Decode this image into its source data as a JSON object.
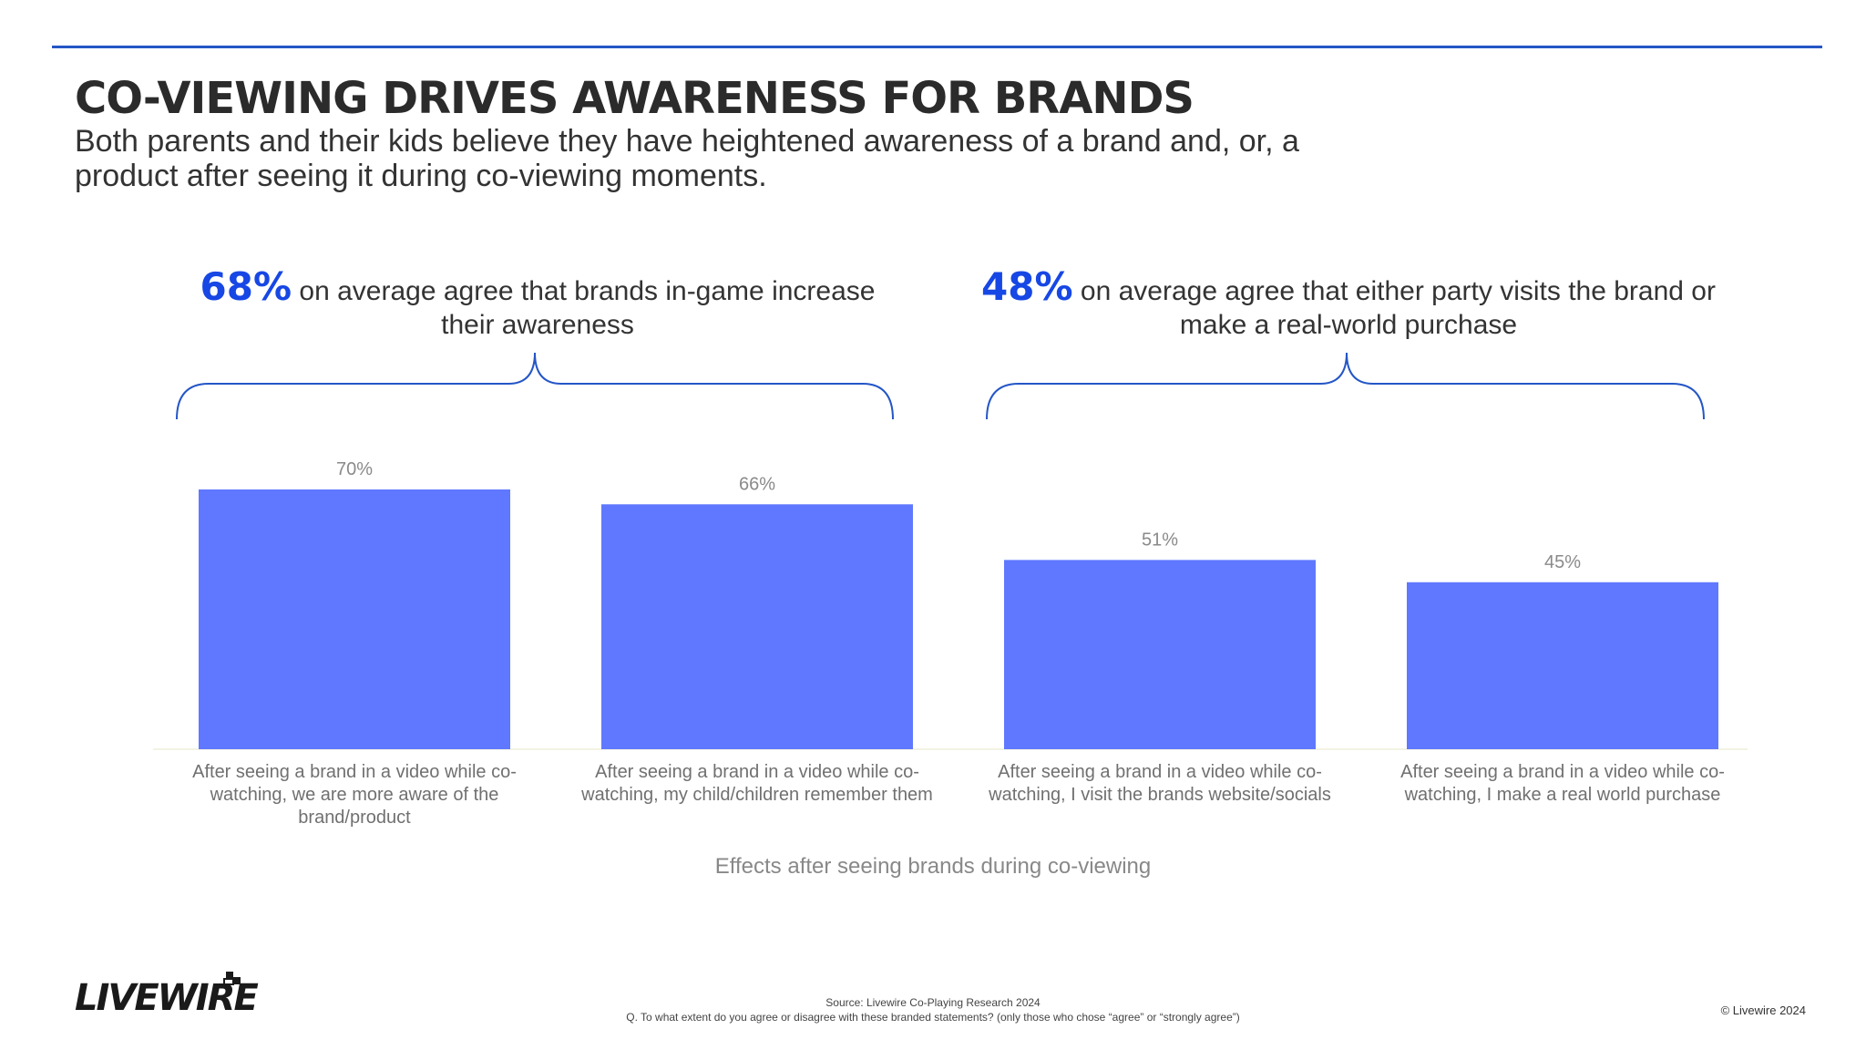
{
  "header": {
    "title": "CO-VIEWING DRIVES AWARENESS FOR BRANDS",
    "subtitle": "Both parents and their kids believe they have heightened awareness of a brand and, or, a product after seeing it during co-viewing moments."
  },
  "callouts": [
    {
      "pct": "68%",
      "text": "on average agree that brands in-game increase their awareness"
    },
    {
      "pct": "48%",
      "text": "on average agree that either party visits the brand or make a real-world purchase"
    }
  ],
  "chart_data": {
    "type": "bar",
    "categories": [
      "After seeing a brand in a video while co-watching, we are more aware of the brand/product",
      "After seeing a brand in a video while co-watching, my child/children remember them",
      "After seeing a brand in a video while co-watching, I visit the brands website/socials",
      "After seeing a brand in a video while co-watching, I make a real world purchase"
    ],
    "values": [
      70,
      66,
      51,
      45
    ],
    "data_labels": [
      "70%",
      "66%",
      "51%",
      "45%"
    ],
    "xlabel": "Effects after seeing brands during co-viewing",
    "ylabel": "",
    "ylim": [
      0,
      80
    ],
    "grid": false,
    "bar_color": "#6078ff"
  },
  "footer": {
    "source": "Source: Livewire Co-Playing Research 2024",
    "question": "Q. To what extent do you agree or disagree with these branded statements? (only those who chose “agree” or “strongly agree”)",
    "logo": "LIVEWIRE",
    "copyright": "© Livewire 2024"
  },
  "colors": {
    "accent": "#1747e4",
    "rule": "#2456c6",
    "bar": "#6078ff"
  }
}
